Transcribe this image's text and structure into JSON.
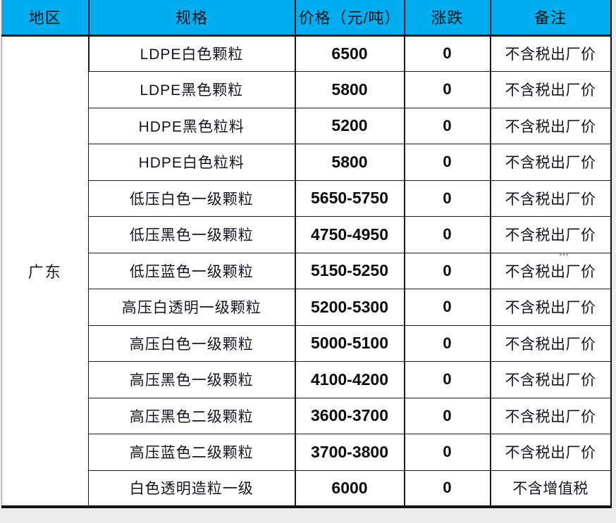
{
  "table": {
    "headers": [
      "地区",
      "规格",
      "价格（元/吨）",
      "涨跌",
      "备注"
    ],
    "region": "广东",
    "rows": [
      {
        "spec": "LDPE白色颗粒",
        "price": "6500",
        "change": "0",
        "note": "不含税出厂价"
      },
      {
        "spec": "LDPE黑色颗粒",
        "price": "5800",
        "change": "0",
        "note": "不含税出厂价"
      },
      {
        "spec": "HDPE黑色粒料",
        "price": "5200",
        "change": "0",
        "note": "不含税出厂价"
      },
      {
        "spec": "HDPE白色粒料",
        "price": "5800",
        "change": "0",
        "note": "不含税出厂价"
      },
      {
        "spec": "低压白色一级颗粒",
        "price": "5650-5750",
        "change": "0",
        "note": "不含税出厂价"
      },
      {
        "spec": "低压黑色一级颗粒",
        "price": "4750-4950",
        "change": "0",
        "note": "不含税出厂价"
      },
      {
        "spec": "低压蓝色一级颗粒",
        "price": "5150-5250",
        "change": "0",
        "note": "不含税出厂价"
      },
      {
        "spec": "高压白透明一级颗粒",
        "price": "5200-5300",
        "change": "0",
        "note": "不含税出厂价"
      },
      {
        "spec": "高压白色一级颗粒",
        "price": "5000-5100",
        "change": "0",
        "note": "不含税出厂价"
      },
      {
        "spec": "高压黑色一级颗粒",
        "price": "4100-4200",
        "change": "0",
        "note": "不含税出厂价"
      },
      {
        "spec": "高压黑色二级颗粒",
        "price": "3600-3700",
        "change": "0",
        "note": "不含税出厂价"
      },
      {
        "spec": "高压蓝色二级颗粒",
        "price": "3700-3800",
        "change": "0",
        "note": "不含税出厂价"
      },
      {
        "spec": "白色透明造粒一级",
        "price": "6000",
        "change": "0",
        "note": "不含增值税"
      }
    ]
  },
  "artifact": {
    "ellipsis": "…"
  },
  "colors": {
    "header_bg": "#00AEEF",
    "border": "#1a1a1a",
    "text": "#111111",
    "page_bg": "#ECECEC"
  }
}
